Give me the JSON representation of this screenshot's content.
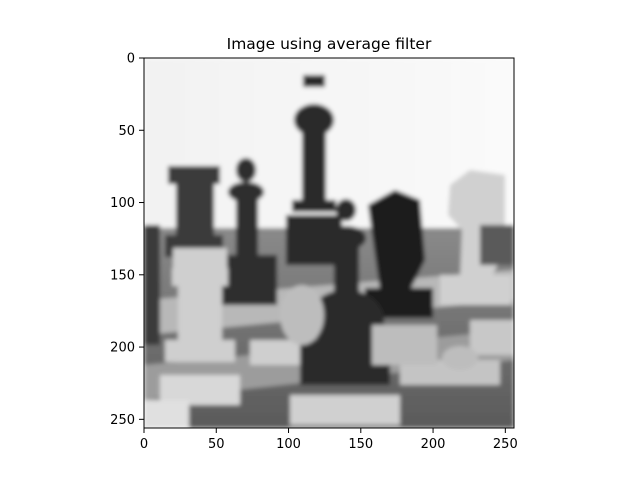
{
  "chart_data": {
    "type": "heatmap",
    "title": "Image using average filter",
    "colormap": "gray",
    "image_width": 256,
    "image_height": 256,
    "xlim": [
      0,
      256
    ],
    "ylim": [
      256,
      0
    ],
    "y_inverted": true,
    "x_ticks": [
      0,
      50,
      100,
      150,
      200,
      250
    ],
    "y_ticks": [
      0,
      50,
      100,
      150,
      200,
      250
    ],
    "x_tick_labels": [
      "0",
      "50",
      "100",
      "150",
      "200",
      "250"
    ],
    "y_tick_labels": [
      "0",
      "50",
      "100",
      "150",
      "200",
      "250"
    ],
    "grid": false
  }
}
